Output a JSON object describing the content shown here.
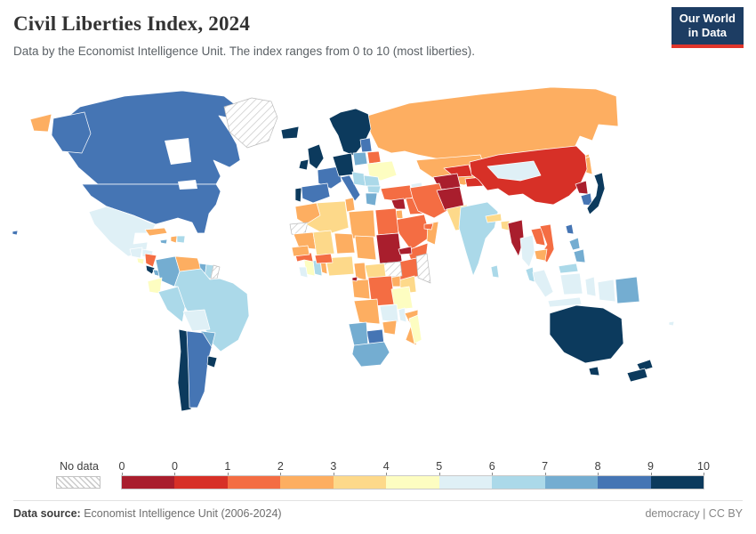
{
  "header": {
    "title": "Civil Liberties Index, 2024",
    "subtitle": "Data by the Economist Intelligence Unit. The index ranges from 0 to 10 (most liberties)."
  },
  "logo": {
    "line1": "Our World",
    "line2": "in Data",
    "bg_color": "#1d3d63",
    "accent_color": "#e0352b"
  },
  "legend": {
    "no_data_label": "No data",
    "ticks": [
      "0",
      "0",
      "1",
      "2",
      "3",
      "4",
      "5",
      "6",
      "7",
      "8",
      "9",
      "10"
    ],
    "bin_colors": [
      "#a91e2d",
      "#d73027",
      "#f46d43",
      "#fdae61",
      "#fdd98a",
      "#fdfdc1",
      "#dff0f6",
      "#abd9e9",
      "#74add1",
      "#4575b4",
      "#0c3a5d"
    ]
  },
  "footer": {
    "source_label": "Data source:",
    "source_text": " Economist Intelligence Unit (2006-2024)",
    "right_text": "democracy | CC BY"
  },
  "chart_data": {
    "type": "choropleth",
    "title": "Civil Liberties Index, 2024",
    "unit": "index (0 = least liberties, 10 = most liberties)",
    "value_range": [
      0,
      10
    ],
    "legend_position": "bottom",
    "bins": [
      {
        "range": "0",
        "color": "#a91e2d"
      },
      {
        "range": "0-1",
        "color": "#d73027"
      },
      {
        "range": "1-2",
        "color": "#f46d43"
      },
      {
        "range": "2-3",
        "color": "#fdae61"
      },
      {
        "range": "3-4",
        "color": "#fdd98a"
      },
      {
        "range": "4-5",
        "color": "#fdfdc1"
      },
      {
        "range": "5-6",
        "color": "#dff0f6"
      },
      {
        "range": "6-7",
        "color": "#abd9e9"
      },
      {
        "range": "7-8",
        "color": "#74add1"
      },
      {
        "range": "8-9",
        "color": "#4575b4"
      },
      {
        "range": "9-10",
        "color": "#0c3a5d"
      }
    ],
    "countries": [
      {
        "slug": "canada",
        "name": "Canada",
        "value": 8.82
      },
      {
        "slug": "united-states",
        "name": "United States",
        "value": 8.24
      },
      {
        "slug": "mexico",
        "name": "Mexico",
        "value": 5.29
      },
      {
        "slug": "greenland",
        "name": "Greenland",
        "value": null
      },
      {
        "slug": "guatemala",
        "name": "Guatemala",
        "value": 5.88
      },
      {
        "slug": "honduras",
        "name": "Honduras",
        "value": 5.29
      },
      {
        "slug": "el-salvador",
        "name": "El Salvador",
        "value": 4.41
      },
      {
        "slug": "nicaragua",
        "name": "Nicaragua",
        "value": 1.76
      },
      {
        "slug": "costa-rica",
        "name": "Costa Rica",
        "value": 9.12
      },
      {
        "slug": "panama",
        "name": "Panama",
        "value": 7.06
      },
      {
        "slug": "cuba",
        "name": "Cuba",
        "value": 2.65
      },
      {
        "slug": "jamaica",
        "name": "Jamaica",
        "value": 7.65
      },
      {
        "slug": "haiti",
        "name": "Haiti",
        "value": 2.65
      },
      {
        "slug": "dominican-republic",
        "name": "Dominican Republic",
        "value": 6.76
      },
      {
        "slug": "colombia",
        "name": "Colombia",
        "value": 7.06
      },
      {
        "slug": "venezuela",
        "name": "Venezuela",
        "value": 2.35
      },
      {
        "slug": "guyana",
        "name": "Guyana",
        "value": 7.06
      },
      {
        "slug": "suriname",
        "name": "Suriname",
        "value": 6.47
      },
      {
        "slug": "french-guiana",
        "name": "French Guiana",
        "value": null
      },
      {
        "slug": "ecuador",
        "name": "Ecuador",
        "value": 4.41
      },
      {
        "slug": "peru",
        "name": "Peru",
        "value": 6.18
      },
      {
        "slug": "brazil",
        "name": "Brazil",
        "value": 6.76
      },
      {
        "slug": "bolivia",
        "name": "Bolivia",
        "value": 5.29
      },
      {
        "slug": "paraguay",
        "name": "Paraguay",
        "value": 7.06
      },
      {
        "slug": "chile",
        "name": "Chile",
        "value": 9.12
      },
      {
        "slug": "argentina",
        "name": "Argentina",
        "value": 8.24
      },
      {
        "slug": "uruguay",
        "name": "Uruguay",
        "value": 9.71
      },
      {
        "slug": "iceland",
        "name": "Iceland",
        "value": 9.71
      },
      {
        "slug": "norway",
        "name": "Norway",
        "value": 9.71
      },
      {
        "slug": "sweden",
        "name": "Sweden",
        "value": 9.41
      },
      {
        "slug": "finland",
        "name": "Finland",
        "value": 9.41
      },
      {
        "slug": "denmark",
        "name": "Denmark",
        "value": 9.71
      },
      {
        "slug": "united-kingdom",
        "name": "United Kingdom",
        "value": 9.12
      },
      {
        "slug": "ireland",
        "name": "Ireland",
        "value": 9.71
      },
      {
        "slug": "france",
        "name": "France",
        "value": 8.24
      },
      {
        "slug": "spain",
        "name": "Spain",
        "value": 8.53
      },
      {
        "slug": "portugal",
        "name": "Portugal",
        "value": 9.41
      },
      {
        "slug": "germany",
        "name": "Germany",
        "value": 9.41
      },
      {
        "slug": "netherlands",
        "name": "Netherlands",
        "value": 9.12
      },
      {
        "slug": "belgium",
        "name": "Belgium",
        "value": 8.82
      },
      {
        "slug": "switzerland",
        "name": "Switzerland",
        "value": 9.71
      },
      {
        "slug": "austria",
        "name": "Austria",
        "value": 9.12
      },
      {
        "slug": "czechia",
        "name": "Czechia",
        "value": 8.82
      },
      {
        "slug": "italy",
        "name": "Italy",
        "value": 8.24
      },
      {
        "slug": "poland",
        "name": "Poland",
        "value": 7.65
      },
      {
        "slug": "baltic-states",
        "name": "Baltic states",
        "value": 8.53
      },
      {
        "slug": "belarus",
        "name": "Belarus",
        "value": 1.47
      },
      {
        "slug": "ukraine",
        "name": "Ukraine",
        "value": 4.71
      },
      {
        "slug": "romania",
        "name": "Romania",
        "value": 6.76
      },
      {
        "slug": "western-balkans",
        "name": "Western Balkans",
        "value": 6.18
      },
      {
        "slug": "hungary",
        "name": "Hungary",
        "value": 6.18
      },
      {
        "slug": "bulgaria",
        "name": "Bulgaria",
        "value": 6.47
      },
      {
        "slug": "greece",
        "name": "Greece",
        "value": 7.65
      },
      {
        "slug": "russia",
        "name": "Russia",
        "value": 2.06
      },
      {
        "slug": "turkey",
        "name": "Turkey",
        "value": 1.76
      },
      {
        "slug": "georgia",
        "name": "Georgia",
        "value": 5.88
      },
      {
        "slug": "armenia",
        "name": "Armenia",
        "value": 5.29
      },
      {
        "slug": "azerbaijan",
        "name": "Azerbaijan",
        "value": 0.88
      },
      {
        "slug": "kazakhstan",
        "name": "Kazakhstan",
        "value": 2.35
      },
      {
        "slug": "turkmenistan",
        "name": "Turkmenistan",
        "value": 0.29
      },
      {
        "slug": "uzbekistan",
        "name": "Uzbekistan",
        "value": 0.88
      },
      {
        "slug": "kyrgyzstan",
        "name": "Kyrgyzstan",
        "value": 1.18
      },
      {
        "slug": "tajikistan",
        "name": "Tajikistan",
        "value": 0.88
      },
      {
        "slug": "afghanistan",
        "name": "Afghanistan",
        "value": 0.29
      },
      {
        "slug": "iran",
        "name": "Iran",
        "value": 1.18
      },
      {
        "slug": "iraq",
        "name": "Iraq",
        "value": 1.47
      },
      {
        "slug": "syria",
        "name": "Syria",
        "value": 0.29
      },
      {
        "slug": "jordan",
        "name": "Jordan",
        "value": 2.94
      },
      {
        "slug": "israel",
        "name": "Israel",
        "value": 5.59
      },
      {
        "slug": "saudi-arabia",
        "name": "Saudi Arabia",
        "value": 1.18
      },
      {
        "slug": "yemen",
        "name": "Yemen",
        "value": 1.18
      },
      {
        "slug": "oman",
        "name": "Oman",
        "value": 2.35
      },
      {
        "slug": "united-arab-emirates",
        "name": "United Arab Emirates",
        "value": 1.76
      },
      {
        "slug": "pakistan",
        "name": "Pakistan",
        "value": 3.53
      },
      {
        "slug": "india",
        "name": "India",
        "value": 6.18
      },
      {
        "slug": "nepal",
        "name": "Nepal",
        "value": 3.82
      },
      {
        "slug": "bangladesh",
        "name": "Bangladesh",
        "value": 3.53
      },
      {
        "slug": "sri-lanka",
        "name": "Sri Lanka",
        "value": 6.18
      },
      {
        "slug": "china",
        "name": "China",
        "value": 0.88
      },
      {
        "slug": "mongolia",
        "name": "Mongolia",
        "value": 5.59
      },
      {
        "slug": "north-korea",
        "name": "North Korea",
        "value": 0
      },
      {
        "slug": "south-korea",
        "name": "South Korea",
        "value": 8.24
      },
      {
        "slug": "japan",
        "name": "Japan",
        "value": 9.12
      },
      {
        "slug": "taiwan",
        "name": "Taiwan",
        "value": 8.53
      },
      {
        "slug": "myanmar",
        "name": "Myanmar",
        "value": 0.29
      },
      {
        "slug": "thailand",
        "name": "Thailand",
        "value": 5.29
      },
      {
        "slug": "laos",
        "name": "Laos",
        "value": 1.18
      },
      {
        "slug": "vietnam",
        "name": "Vietnam",
        "value": 1.18
      },
      {
        "slug": "cambodia",
        "name": "Cambodia",
        "value": 2.65
      },
      {
        "slug": "malaysia",
        "name": "Malaysia",
        "value": 6.18
      },
      {
        "slug": "philippines",
        "name": "Philippines",
        "value": 7.65
      },
      {
        "slug": "indonesia",
        "name": "Indonesia",
        "value": 5.29
      },
      {
        "slug": "papua-new-guinea",
        "name": "Papua New Guinea",
        "value": 7.06
      },
      {
        "slug": "fiji",
        "name": "Fiji",
        "value": 5.88
      },
      {
        "slug": "australia",
        "name": "Australia",
        "value": 9.41
      },
      {
        "slug": "new-zealand",
        "name": "New Zealand",
        "value": 9.71
      },
      {
        "slug": "morocco",
        "name": "Morocco",
        "value": 2.65
      },
      {
        "slug": "western-sahara",
        "name": "Western Sahara",
        "value": null
      },
      {
        "slug": "algeria",
        "name": "Algeria",
        "value": 3.24
      },
      {
        "slug": "tunisia",
        "name": "Tunisia",
        "value": 2.65
      },
      {
        "slug": "libya",
        "name": "Libya",
        "value": 2.06
      },
      {
        "slug": "egypt",
        "name": "Egypt",
        "value": 1.47
      },
      {
        "slug": "mauritania",
        "name": "Mauritania",
        "value": 2.65
      },
      {
        "slug": "mali",
        "name": "Mali",
        "value": 3.53
      },
      {
        "slug": "niger",
        "name": "Niger",
        "value": 2.65
      },
      {
        "slug": "chad",
        "name": "Chad",
        "value": 2.35
      },
      {
        "slug": "sudan",
        "name": "Sudan",
        "value": 0.29
      },
      {
        "slug": "south-sudan",
        "name": "South Sudan",
        "value": null
      },
      {
        "slug": "eritrea",
        "name": "Eritrea",
        "value": 0.29
      },
      {
        "slug": "ethiopia",
        "name": "Ethiopia",
        "value": 1.76
      },
      {
        "slug": "somalia",
        "name": "Somalia",
        "value": null
      },
      {
        "slug": "kenya",
        "name": "Kenya",
        "value": 3.82
      },
      {
        "slug": "uganda",
        "name": "Uganda",
        "value": 2.65
      },
      {
        "slug": "central-african-republic",
        "name": "Central African Republic",
        "value": 3.53
      },
      {
        "slug": "cameroon",
        "name": "Cameroon",
        "value": 2.35
      },
      {
        "slug": "nigeria",
        "name": "Nigeria",
        "value": 3.53
      },
      {
        "slug": "benin",
        "name": "Benin",
        "value": 2.65
      },
      {
        "slug": "ghana",
        "name": "Ghana",
        "value": 6.18
      },
      {
        "slug": "ivory-coast",
        "name": "Cote d'Ivoire",
        "value": 4.41
      },
      {
        "slug": "liberia",
        "name": "Liberia",
        "value": 5.29
      },
      {
        "slug": "guinea",
        "name": "Guinea",
        "value": 1.76
      },
      {
        "slug": "senegal",
        "name": "Senegal",
        "value": 2.65
      },
      {
        "slug": "burkina-faso",
        "name": "Burkina Faso",
        "value": 1.47
      },
      {
        "slug": "gabon",
        "name": "Gabon",
        "value": 2.35
      },
      {
        "slug": "equatorial-guinea",
        "name": "Equatorial Guinea",
        "value": 0.29
      },
      {
        "slug": "dr-congo",
        "name": "Democratic Republic of Congo",
        "value": 1.47
      },
      {
        "slug": "tanzania",
        "name": "Tanzania",
        "value": 4.12
      },
      {
        "slug": "angola",
        "name": "Angola",
        "value": 2.65
      },
      {
        "slug": "zambia",
        "name": "Zambia",
        "value": 5.29
      },
      {
        "slug": "malawi",
        "name": "Malawi",
        "value": 5.29
      },
      {
        "slug": "mozambique",
        "name": "Mozambique",
        "value": 2.94
      },
      {
        "slug": "zimbabwe",
        "name": "Zimbabwe",
        "value": 2.35
      },
      {
        "slug": "botswana",
        "name": "Botswana",
        "value": 8.24
      },
      {
        "slug": "namibia",
        "name": "Namibia",
        "value": 7.06
      },
      {
        "slug": "south-africa",
        "name": "South Africa",
        "value": 7.35
      },
      {
        "slug": "madagascar",
        "name": "Madagascar",
        "value": 4.41
      }
    ]
  }
}
